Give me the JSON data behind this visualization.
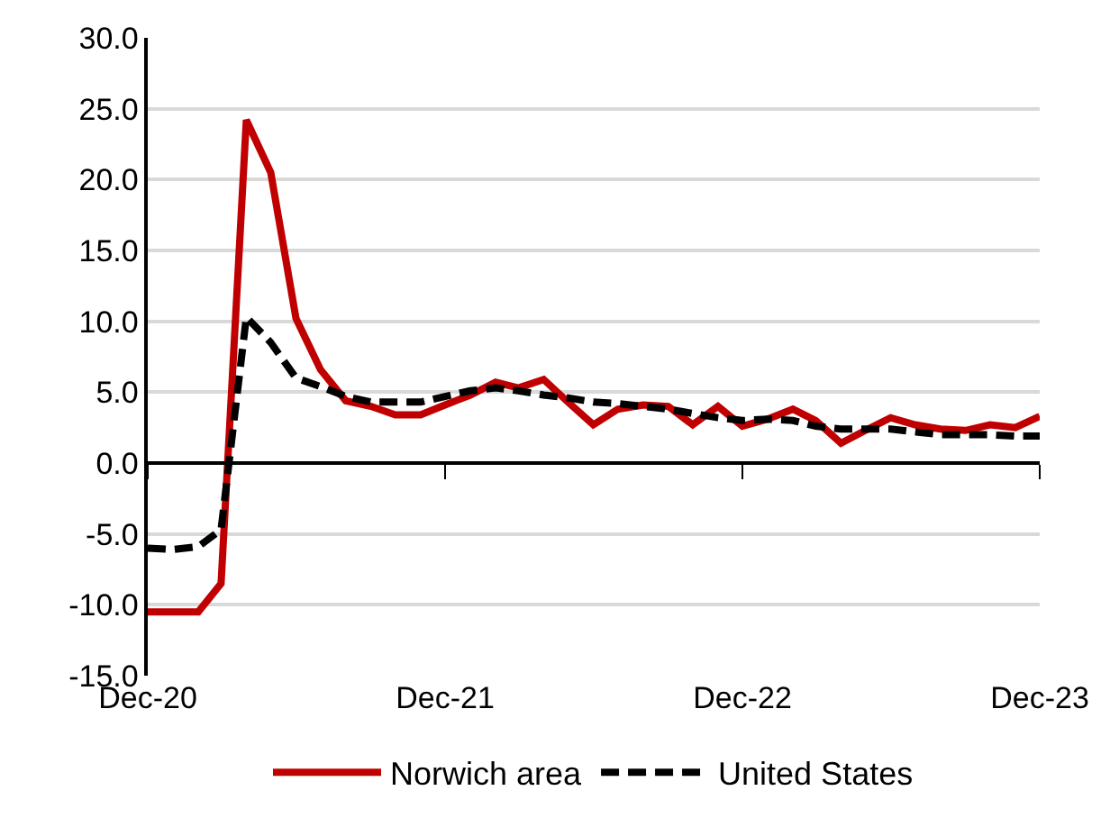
{
  "chart_data": {
    "type": "line",
    "x": [
      "2020-12",
      "2021-01",
      "2021-02",
      "2021-03",
      "2021-04",
      "2021-05",
      "2021-06",
      "2021-07",
      "2021-08",
      "2021-09",
      "2021-10",
      "2021-11",
      "2021-12",
      "2022-01",
      "2022-02",
      "2022-03",
      "2022-04",
      "2022-05",
      "2022-06",
      "2022-07",
      "2022-08",
      "2022-09",
      "2022-10",
      "2022-11",
      "2022-12",
      "2023-01",
      "2023-02",
      "2023-03",
      "2023-04",
      "2023-05",
      "2023-06",
      "2023-07",
      "2023-08",
      "2023-09",
      "2023-10",
      "2023-11",
      "2023-12"
    ],
    "series": [
      {
        "name": "Norwich area",
        "color": "#c00000",
        "line_style": "solid",
        "values": [
          -10.5,
          -10.5,
          -10.5,
          -8.5,
          24.2,
          20.5,
          10.2,
          6.6,
          4.4,
          4.0,
          3.4,
          3.4,
          4.1,
          4.8,
          5.7,
          5.3,
          5.9,
          4.3,
          2.7,
          3.8,
          4.1,
          4.0,
          2.7,
          4.0,
          2.6,
          3.1,
          3.8,
          3.0,
          1.4,
          2.3,
          3.2,
          2.7,
          2.4,
          2.3,
          2.7,
          2.5,
          3.3
        ]
      },
      {
        "name": "United States",
        "color": "#000000",
        "line_style": "dashed",
        "values": [
          -6.0,
          -6.1,
          -5.9,
          -4.7,
          10.3,
          8.5,
          6.0,
          5.4,
          4.7,
          4.3,
          4.3,
          4.3,
          4.7,
          5.1,
          5.3,
          5.1,
          4.8,
          4.6,
          4.3,
          4.2,
          4.0,
          3.8,
          3.5,
          3.2,
          3.0,
          3.1,
          3.0,
          2.6,
          2.4,
          2.4,
          2.4,
          2.2,
          2.0,
          2.0,
          2.0,
          1.9,
          1.9
        ]
      }
    ],
    "xlim": [
      "2020-12",
      "2023-12"
    ],
    "xticks": [
      {
        "value": "2020-12",
        "label": "Dec-20"
      },
      {
        "value": "2021-12",
        "label": "Dec-21"
      },
      {
        "value": "2022-12",
        "label": "Dec-22"
      },
      {
        "value": "2023-12",
        "label": "Dec-23"
      }
    ],
    "ylim": [
      -15,
      30
    ],
    "yticks": [
      {
        "value": -15,
        "label": "-15.0"
      },
      {
        "value": -10,
        "label": "-10.0"
      },
      {
        "value": -5,
        "label": "-5.0"
      },
      {
        "value": 0,
        "label": "0.0"
      },
      {
        "value": 5,
        "label": "5.0"
      },
      {
        "value": 10,
        "label": "10.0"
      },
      {
        "value": 15,
        "label": "15.0"
      },
      {
        "value": 20,
        "label": "20.0"
      },
      {
        "value": 25,
        "label": "25.0"
      },
      {
        "value": 30,
        "label": "30.0"
      }
    ],
    "grid": "y",
    "legend": "bottom",
    "marker": "none"
  }
}
